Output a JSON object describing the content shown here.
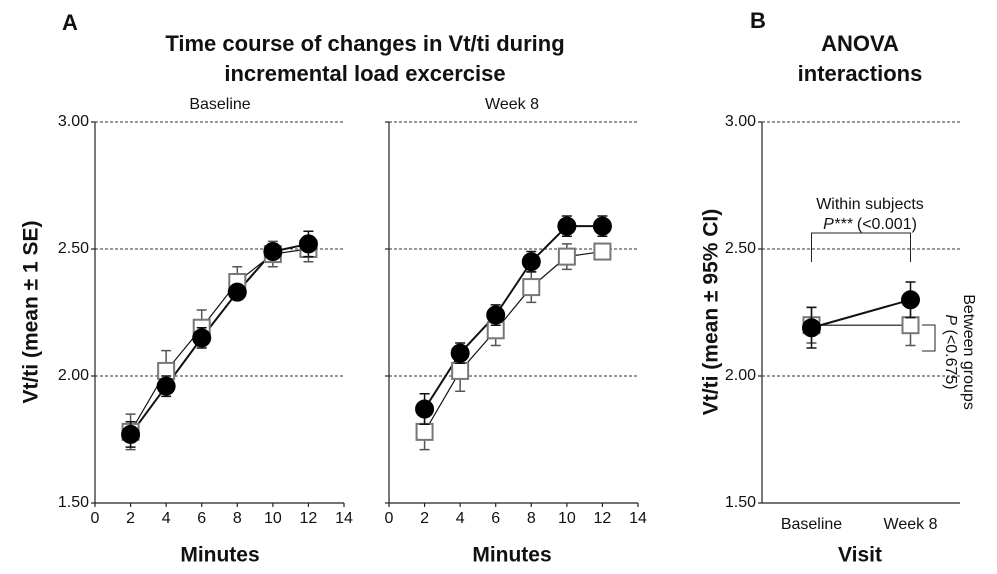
{
  "chart_data": [
    {
      "type": "line",
      "panel": "A",
      "title": [
        "Time course of changes in Vt/ti during",
        "incremental load excercise"
      ],
      "subtitle": "Baseline",
      "xlabel": "Minutes",
      "ylabel": "Vt/ti (mean ± 1 SE)",
      "x": [
        2,
        4,
        6,
        8,
        10,
        12
      ],
      "series": [
        {
          "marker": "square",
          "color": "#ffffff",
          "values": [
            1.78,
            2.02,
            2.19,
            2.37,
            2.48,
            2.5
          ],
          "errors": [
            0.07,
            0.08,
            0.07,
            0.06,
            0.05,
            0.05
          ]
        },
        {
          "marker": "circle",
          "color": "#000000",
          "values": [
            1.77,
            1.96,
            2.15,
            2.33,
            2.49,
            2.52
          ],
          "errors": [
            0.05,
            0.04,
            0.04,
            0.03,
            0.03,
            0.05
          ]
        }
      ],
      "xlim": [
        0,
        14
      ],
      "xticks": [
        0,
        2,
        4,
        6,
        8,
        10,
        12,
        14
      ],
      "ylim": [
        1.5,
        3
      ],
      "yticks": [
        {
          "value": 1.5,
          "label": "1.50"
        },
        {
          "value": 2,
          "label": "2.00"
        },
        {
          "value": 2.5,
          "label": "2.50"
        },
        {
          "value": 3,
          "label": "3.00"
        }
      ],
      "ytick_labels": true,
      "grid": true
    },
    {
      "type": "line",
      "subtitle": "Week 8",
      "xlabel": "Minutes",
      "x": [
        2,
        4,
        6,
        8,
        10,
        12
      ],
      "series": [
        {
          "marker": "square",
          "color": "#ffffff",
          "values": [
            1.78,
            2.02,
            2.18,
            2.35,
            2.47,
            2.49
          ],
          "errors": [
            0.07,
            0.08,
            0.06,
            0.06,
            0.05,
            0.03
          ]
        },
        {
          "marker": "circle",
          "color": "#000000",
          "values": [
            1.87,
            2.09,
            2.24,
            2.45,
            2.59,
            2.59
          ],
          "errors": [
            0.06,
            0.04,
            0.04,
            0.04,
            0.04,
            0.04
          ]
        }
      ],
      "xlim": [
        0,
        14
      ],
      "xticks": [
        0,
        2,
        4,
        6,
        8,
        10,
        12,
        14
      ],
      "ylim": [
        1.5,
        3
      ],
      "yticks": [
        1.5,
        2,
        2.5,
        3
      ],
      "ytick_labels": false,
      "grid": true
    },
    {
      "type": "line",
      "panel": "B",
      "title": [
        "ANOVA",
        "interactions"
      ],
      "xlabel": "Visit",
      "ylabel": "Vt/ti (mean ± 95% CI)",
      "categories": [
        "Baseline",
        "Week 8"
      ],
      "series": [
        {
          "marker": "square",
          "color": "#ffffff",
          "values": [
            2.2,
            2.2
          ],
          "errors": [
            0.07,
            0.08
          ]
        },
        {
          "marker": "circle",
          "color": "#000000",
          "values": [
            2.19,
            2.3
          ],
          "errors": [
            0.08,
            0.07
          ]
        }
      ],
      "ylim": [
        1.5,
        3
      ],
      "yticks": [
        {
          "value": 1.5,
          "label": "1.50"
        },
        {
          "value": 2,
          "label": "2.00"
        },
        {
          "value": 2.5,
          "label": "2.50"
        },
        {
          "value": 3,
          "label": "3.00"
        }
      ],
      "ytick_labels": true,
      "grid": true,
      "within_subjects": {
        "label": "Within subjects",
        "p": "P***",
        "value": "(<0.001)"
      },
      "between_groups": {
        "label": "Between groups",
        "p": "P",
        "value": "(<0.675)"
      }
    }
  ]
}
